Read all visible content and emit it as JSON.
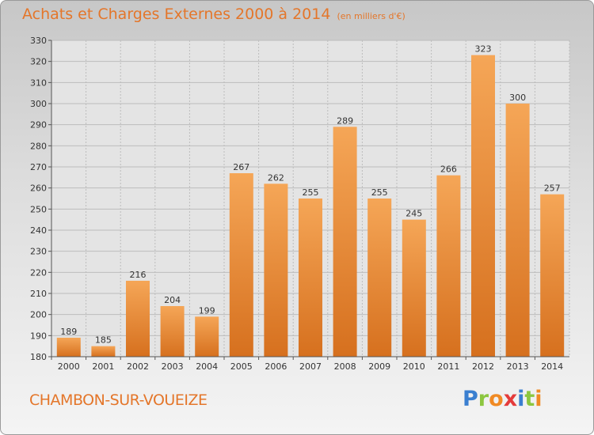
{
  "header": {
    "title": "Achats et Charges Externes 2000 à 2014",
    "unit": "(en milliers d'€)"
  },
  "footer": {
    "city": "CHAMBON-SUR-VOUEIZE",
    "logo": {
      "letters": [
        "P",
        "r",
        "o",
        "x",
        "i",
        "t",
        "i"
      ],
      "colors": [
        "#3a7fd0",
        "#8cc63f",
        "#f08a24",
        "#e43b3b",
        "#3a7fd0",
        "#8cc63f",
        "#f08a24"
      ]
    }
  },
  "chart_data": {
    "type": "bar",
    "title": "Achats et Charges Externes 2000 à 2014",
    "subtitle": "(en milliers d'€)",
    "categories": [
      "2000",
      "2001",
      "2002",
      "2003",
      "2004",
      "2005",
      "2006",
      "2007",
      "2008",
      "2009",
      "2010",
      "2011",
      "2012",
      "2013",
      "2014"
    ],
    "values": [
      189,
      185,
      216,
      204,
      199,
      267,
      262,
      255,
      289,
      255,
      245,
      266,
      323,
      300,
      257
    ],
    "ylim": [
      180,
      330
    ],
    "ytick_step": 10,
    "grid": true,
    "bar_color_top": "#f5a657",
    "bar_color_bottom": "#d6701e",
    "label_color": "#333333",
    "grid_color": "#bcbcbc"
  }
}
